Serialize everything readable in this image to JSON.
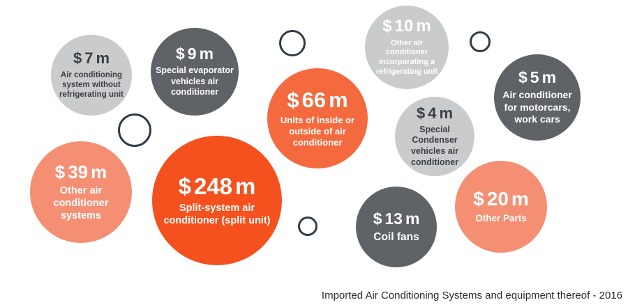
{
  "colors": {
    "light_gray": "#c9cbcc",
    "dark_gray": "#5f6368",
    "orange_deep": "#f4511e",
    "orange": "#f46a3e",
    "salmon": "#f58f74",
    "ring": "#2f3c48",
    "dark_text": "#3b3f44",
    "light_text": "#ffffff"
  },
  "chart_data": {
    "type": "bubble",
    "currency": "$",
    "unit": "m",
    "items": [
      {
        "label": "Air conditioning system without refrigerating unit",
        "value": 7,
        "color": "light_gray"
      },
      {
        "label": "Special evaporator vehicles air conditioner",
        "value": 9,
        "color": "dark_gray"
      },
      {
        "label": "Other air conditioner incorporating a refrigerating unit",
        "value": 10,
        "color": "light_gray"
      },
      {
        "label": "Units of inside or outside of air conditioner",
        "value": 66,
        "color": "orange"
      },
      {
        "label": "Air conditioner for motorcars, work cars",
        "value": 5,
        "color": "dark_gray"
      },
      {
        "label": "Special Condenser vehicles air conditioner",
        "value": 4,
        "color": "light_gray"
      },
      {
        "label": "Other air conditioner systems",
        "value": 39,
        "color": "salmon"
      },
      {
        "label": "Split-system air conditioner (split unit)",
        "value": 248,
        "color": "orange_deep"
      },
      {
        "label": "Coil fans",
        "value": 13,
        "color": "dark_gray"
      },
      {
        "label": "Other Parts",
        "value": 20,
        "color": "salmon"
      }
    ]
  },
  "caption": "Imported Air Conditioning Systems and equipment thereof - 2016"
}
